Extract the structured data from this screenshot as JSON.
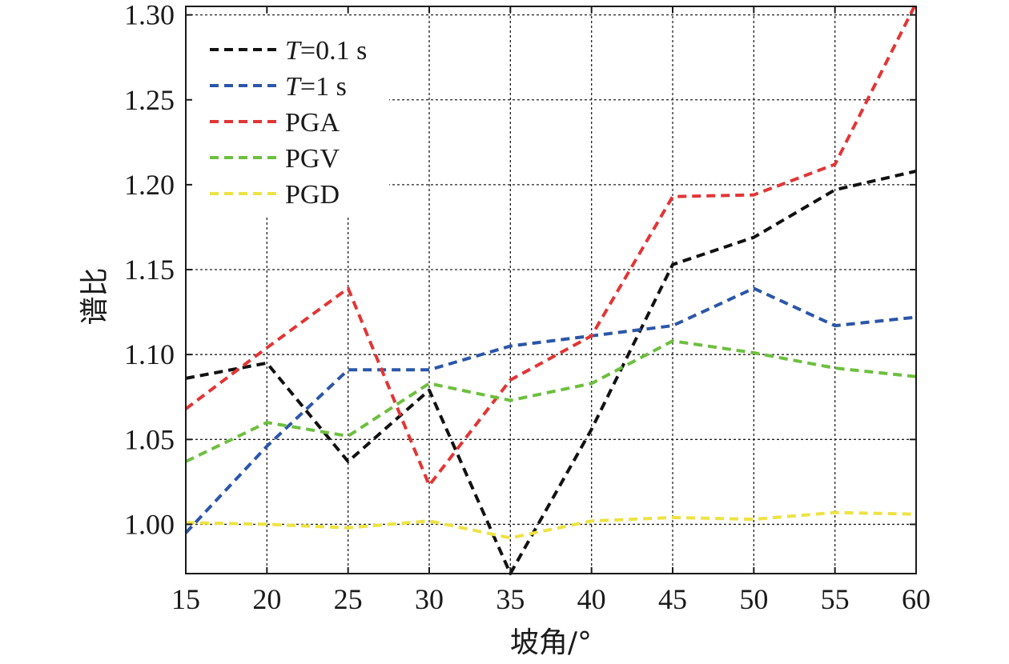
{
  "chart_data": {
    "type": "line",
    "xlabel": "坡角/°",
    "ylabel": "谱比",
    "x": [
      15,
      20,
      25,
      30,
      35,
      40,
      45,
      50,
      55,
      60
    ],
    "xlim": [
      15,
      60
    ],
    "ylim": [
      0.971,
      1.305
    ],
    "xticks": [
      "15",
      "20",
      "25",
      "30",
      "35",
      "40",
      "45",
      "50",
      "55",
      "60"
    ],
    "yticks": [
      "1.00",
      "1.05",
      "1.10",
      "1.15",
      "1.20",
      "1.25",
      "1.30"
    ],
    "grid": true,
    "legend_position": "top-left",
    "series": [
      {
        "name_italic": "T",
        "name_rest": "=0.1 s",
        "color": "#111111",
        "values": [
          1.086,
          1.095,
          1.037,
          1.079,
          0.971,
          1.056,
          1.153,
          1.169,
          1.197,
          1.208
        ]
      },
      {
        "name_italic": "T",
        "name_rest": "=1 s",
        "color": "#2b56a8",
        "values": [
          0.995,
          1.046,
          1.091,
          1.091,
          1.105,
          1.111,
          1.117,
          1.139,
          1.117,
          1.122
        ]
      },
      {
        "name": "PGA",
        "color": "#e23535",
        "values": [
          1.068,
          1.104,
          1.139,
          1.023,
          1.085,
          1.111,
          1.193,
          1.194,
          1.212,
          1.307
        ]
      },
      {
        "name": "PGV",
        "color": "#6dbf3f",
        "values": [
          1.037,
          1.06,
          1.052,
          1.083,
          1.073,
          1.083,
          1.108,
          1.101,
          1.092,
          1.087
        ]
      },
      {
        "name": "PGD",
        "color": "#ece344",
        "values": [
          1.001,
          1.0,
          0.998,
          1.002,
          0.992,
          1.002,
          1.004,
          1.003,
          1.007,
          1.006
        ]
      }
    ]
  }
}
